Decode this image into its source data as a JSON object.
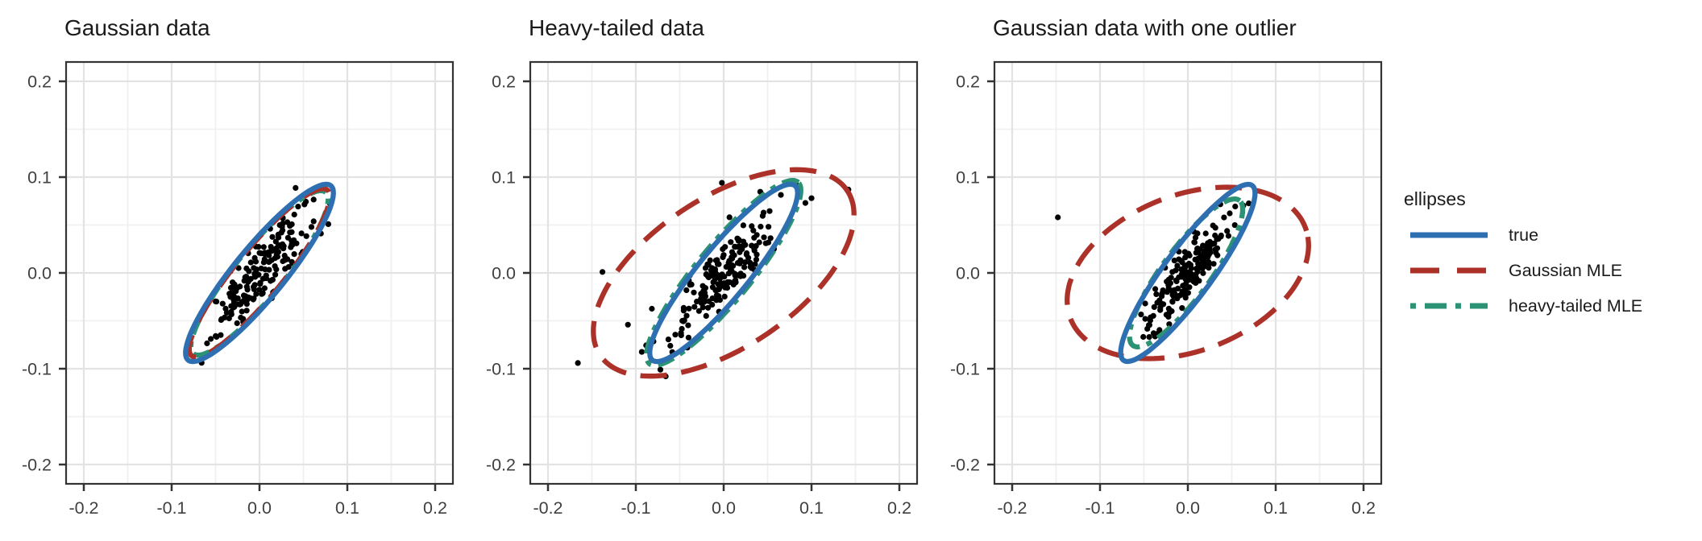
{
  "figure_title": "",
  "palette": {
    "true": "#2D6FB0",
    "gaussian_mle": "#AC3229",
    "heavy_tailed_mle": "#2B9273",
    "point": "#000000",
    "grid_major": "#E3E3E3",
    "grid_minor": "#F0F0F0",
    "panel_border": "#333333",
    "axis_text": "#404040",
    "title_text": "#1A1A1A",
    "background": "#FFFFFF"
  },
  "legend": {
    "title": "ellipses",
    "items": [
      {
        "id": "true",
        "label": "true",
        "dash": "solid"
      },
      {
        "id": "gaussian_mle",
        "label": "Gaussian MLE",
        "dash": "dashed"
      },
      {
        "id": "heavy_tailed_mle",
        "label": "heavy-tailed MLE",
        "dash": "dotdash"
      }
    ]
  },
  "axes": {
    "x_range": [
      -0.2,
      0.2
    ],
    "y_range": [
      -0.2,
      0.2
    ],
    "x_tick_values": [
      -0.2,
      -0.1,
      0.0,
      0.1,
      0.2
    ],
    "y_tick_values": [
      0.2,
      0.1,
      0.0,
      -0.1,
      -0.2
    ],
    "x_tick_labels": [
      "-0.2",
      "-0.1",
      "0.0",
      "0.1",
      "0.2"
    ],
    "y_tick_labels": [
      "0.2",
      "0.1",
      "0.0",
      "-0.1",
      "-0.2"
    ],
    "minor_tick_values": [
      -0.15,
      -0.05,
      0.05,
      0.15
    ],
    "grid": true
  },
  "chart_data": [
    {
      "type": "scatter",
      "title": "Gaussian data",
      "ellipses": [
        {
          "series": "heavy_tailed_mle",
          "cx": 0,
          "cy": 0,
          "a": 0.113,
          "b": 0.0265,
          "angle_deg": 48
        },
        {
          "series": "gaussian_mle",
          "cx": 0,
          "cy": 0,
          "a": 0.116,
          "b": 0.026,
          "angle_deg": 48
        },
        {
          "series": "true",
          "cx": 0,
          "cy": 0,
          "a": 0.122,
          "b": 0.0275,
          "angle_deg": 48
        }
      ],
      "scatter": {
        "n": 190,
        "seed": 11,
        "center": [
          0,
          0
        ],
        "sd_major": 0.04,
        "sd_minor": 0.0115,
        "angle_deg": 48,
        "tail_factor": 1.0,
        "tail_every": 0,
        "outliers": []
      }
    },
    {
      "type": "scatter",
      "title": "Heavy-tailed data",
      "ellipses": [
        {
          "series": "heavy_tailed_mle",
          "cx": 0,
          "cy": 0,
          "a": 0.127,
          "b": 0.03,
          "angle_deg": 48
        },
        {
          "series": "gaussian_mle",
          "cx": 0,
          "cy": 0,
          "a": 0.165,
          "b": 0.08,
          "angle_deg": 30
        },
        {
          "series": "true",
          "cx": 0,
          "cy": 0,
          "a": 0.122,
          "b": 0.0275,
          "angle_deg": 48
        }
      ],
      "scatter": {
        "n": 180,
        "seed": 22,
        "center": [
          0,
          0
        ],
        "sd_major": 0.037,
        "sd_minor": 0.0105,
        "angle_deg": 48,
        "tail_factor": 1.7,
        "tail_every": 9,
        "outliers": [
          [
            -0.166,
            -0.094
          ],
          [
            -0.138,
            0.001
          ],
          [
            -0.109,
            -0.054
          ],
          [
            0.142,
            0.087
          ],
          [
            0.082,
            0.093
          ],
          [
            -0.002,
            0.094
          ],
          [
            -0.072,
            -0.101
          ],
          [
            -0.066,
            -0.108
          ],
          [
            0.093,
            0.073
          ],
          [
            0.1,
            0.078
          ]
        ]
      }
    },
    {
      "type": "scatter",
      "title": "Gaussian data with one outlier",
      "ellipses": [
        {
          "series": "heavy_tailed_mle",
          "cx": -0.002,
          "cy": 0,
          "a": 0.097,
          "b": 0.0265,
          "angle_deg": 51
        },
        {
          "series": "gaussian_mle",
          "cx": 0,
          "cy": 0,
          "a": 0.142,
          "b": 0.082,
          "angle_deg": 18
        },
        {
          "series": "true",
          "cx": 0,
          "cy": 0,
          "a": 0.117,
          "b": 0.0265,
          "angle_deg": 51
        }
      ],
      "scatter": {
        "n": 195,
        "seed": 33,
        "center": [
          0,
          0
        ],
        "sd_major": 0.036,
        "sd_minor": 0.0105,
        "angle_deg": 50,
        "tail_factor": 1.0,
        "tail_every": 0,
        "outliers": [
          [
            -0.148,
            0.058
          ]
        ]
      }
    }
  ],
  "style_data": {
    "ellipse_stroke_width": 6.3,
    "dash_pattern_dashed": "33 18",
    "dash_pattern_dotdash": "21 9 7 9",
    "legend_dash_dashed": "36 22",
    "legend_dash_dotdash": "7 11 27 11",
    "point_radius": 3.6
  }
}
